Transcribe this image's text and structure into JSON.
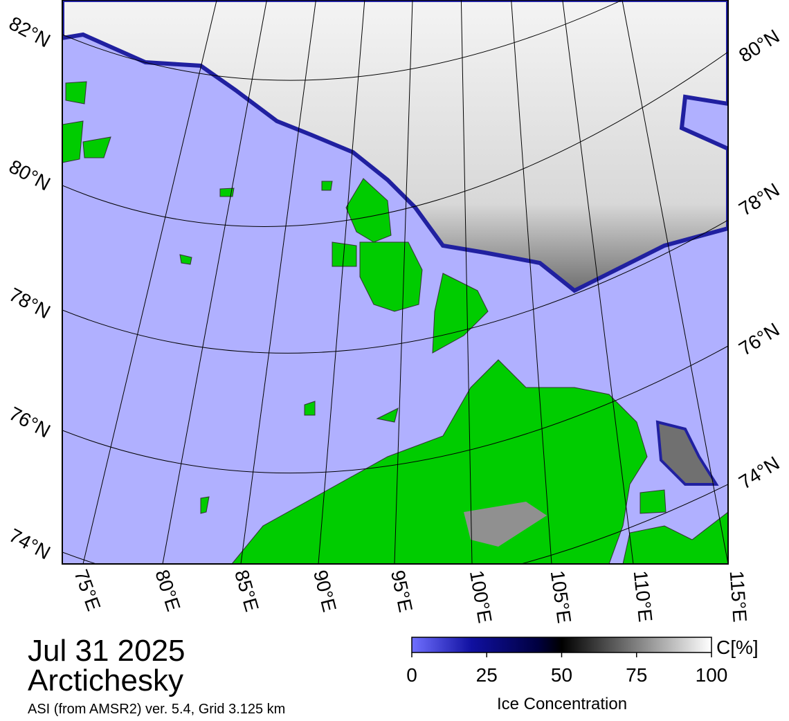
{
  "map": {
    "date": "Jul 31 2025",
    "region": "Arctichesky",
    "source": "ASI (from AMSR2) ver. 5.4,  Grid 3.125 km",
    "lat_labels_left": [
      "82°N",
      "80°N",
      "78°N",
      "76°N",
      "74°N"
    ],
    "lat_labels_right": [
      "80°N",
      "78°N",
      "76°N",
      "74°N"
    ],
    "lon_labels": [
      "75°E",
      "80°E",
      "85°E",
      "90°E",
      "95°E",
      "100°E",
      "105°E",
      "110°E",
      "115°E"
    ]
  },
  "colorbar": {
    "label": "Ice Concentration",
    "unit": "C[%]",
    "range": [
      0,
      100
    ],
    "ticks": [
      0,
      25,
      50,
      75,
      100
    ]
  }
}
